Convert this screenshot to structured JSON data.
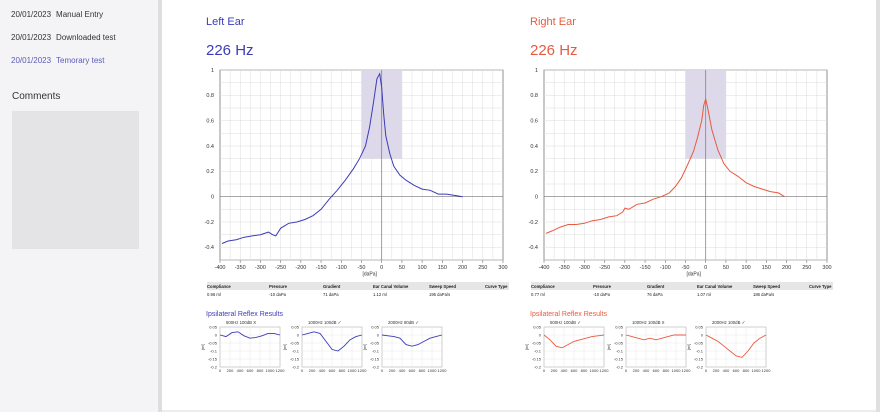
{
  "sidebar": {
    "entries": [
      {
        "date": "20/01/2023",
        "label": "Manual Entry",
        "active": false
      },
      {
        "date": "20/01/2023",
        "label": "Downloaded test",
        "active": false
      },
      {
        "date": "20/01/2023",
        "label": "Temorary test",
        "active": true
      }
    ],
    "comments_title": "Comments"
  },
  "measurement_headers": [
    "Compliance",
    "Pressure",
    "Gradient",
    "Ear Canal Volume",
    "Sweep Speed",
    "Curve Type"
  ],
  "reflex_title": "Ipsilateral Reflex Results",
  "colors": {
    "left": "#3c3cb8",
    "right": "#e85a40",
    "peak_region": "#ddd8ea"
  },
  "left_ear": {
    "title": "Left Ear",
    "frequency": "226 Hz",
    "measurements": [
      "0.96 ml",
      "-10 daPa",
      "71 daPa",
      "1.12 ml",
      "195 daPa/s",
      ""
    ],
    "reflex": [
      {
        "header": "500Hz   100dB X",
        "values": [
          0,
          -0.01,
          0.015,
          0.02,
          -0.005,
          -0.02,
          -0.015,
          -0.005,
          0.01,
          0.01,
          0
        ]
      },
      {
        "header": "1000Hz   100dB ✓",
        "values": [
          0,
          0.01,
          0.02,
          0.01,
          -0.04,
          -0.09,
          -0.1,
          -0.07,
          -0.03,
          -0.01,
          0
        ]
      },
      {
        "header": "2000Hz   80dB ✓",
        "values": [
          0,
          -0.005,
          -0.01,
          -0.02,
          -0.06,
          -0.07,
          -0.06,
          -0.04,
          -0.02,
          -0.01,
          0
        ]
      }
    ]
  },
  "right_ear": {
    "title": "Right Ear",
    "frequency": "226 Hz",
    "measurements": [
      "0.77 ml",
      "-10 daPa",
      "76 daPa",
      "1.07 ml",
      "186 daPa/s",
      ""
    ],
    "reflex": [
      {
        "header": "500Hz   100dB ✓",
        "values": [
          0,
          -0.03,
          -0.07,
          -0.08,
          -0.06,
          -0.04,
          -0.03,
          -0.02,
          -0.01,
          -0.005,
          0
        ]
      },
      {
        "header": "1000Hz   100dB X",
        "values": [
          0,
          -0.01,
          -0.02,
          -0.03,
          -0.02,
          -0.03,
          -0.02,
          -0.01,
          0,
          0,
          0
        ]
      },
      {
        "header": "2000Hz   100dB ✓",
        "values": [
          0,
          -0.02,
          -0.04,
          -0.07,
          -0.1,
          -0.13,
          -0.14,
          -0.1,
          -0.05,
          -0.02,
          0
        ]
      }
    ]
  },
  "chart_data": [
    {
      "type": "line",
      "title": "Left Ear",
      "xlabel": "[daPa]",
      "xlim": [
        -400,
        300
      ],
      "ylim": [
        -0.5,
        1
      ],
      "x_ticks": [
        -400,
        -350,
        -300,
        -250,
        -200,
        -150,
        -100,
        -50,
        0,
        50,
        100,
        150,
        200,
        250,
        300
      ],
      "y_ticks": [
        -0.4,
        -0.2,
        0,
        0.2,
        0.4,
        0.6,
        0.8,
        1
      ],
      "grid": true,
      "peak_region": {
        "x": [
          -50,
          50
        ],
        "y": [
          0.3,
          1.05
        ]
      },
      "series": [
        {
          "x": [
            -395,
            -380,
            -360,
            -340,
            -320,
            -300,
            -280,
            -270,
            -262,
            -250,
            -230,
            -210,
            -190,
            -170,
            -150,
            -130,
            -110,
            -90,
            -70,
            -55,
            -40,
            -30,
            -20,
            -12,
            -5,
            0,
            5,
            10,
            20,
            30,
            45,
            60,
            80,
            100,
            120,
            140,
            160,
            180,
            200
          ],
          "y": [
            -0.37,
            -0.35,
            -0.34,
            -0.32,
            -0.31,
            -0.3,
            -0.28,
            -0.3,
            -0.31,
            -0.25,
            -0.21,
            -0.2,
            -0.18,
            -0.15,
            -0.1,
            -0.02,
            0.05,
            0.13,
            0.22,
            0.3,
            0.4,
            0.55,
            0.75,
            0.93,
            0.97,
            0.86,
            0.65,
            0.48,
            0.34,
            0.24,
            0.17,
            0.13,
            0.09,
            0.06,
            0.05,
            0.02,
            0.02,
            0.01,
            0.0
          ]
        }
      ]
    },
    {
      "type": "line",
      "title": "Right Ear",
      "xlabel": "[daPa]",
      "xlim": [
        -400,
        300
      ],
      "ylim": [
        -0.5,
        1
      ],
      "x_ticks": [
        -400,
        -350,
        -300,
        -250,
        -200,
        -150,
        -100,
        -50,
        0,
        50,
        100,
        150,
        200,
        250,
        300
      ],
      "y_ticks": [
        -0.4,
        -0.2,
        0,
        0.2,
        0.4,
        0.6,
        0.8,
        1
      ],
      "grid": true,
      "peak_region": {
        "x": [
          -50,
          50
        ],
        "y": [
          0.3,
          1.05
        ]
      },
      "series": [
        {
          "x": [
            -395,
            -380,
            -360,
            -340,
            -320,
            -300,
            -280,
            -260,
            -240,
            -220,
            -205,
            -200,
            -190,
            -170,
            -150,
            -130,
            -110,
            -90,
            -75,
            -60,
            -45,
            -30,
            -20,
            -10,
            -5,
            0,
            5,
            15,
            30,
            45,
            60,
            80,
            100,
            120,
            140,
            160,
            180,
            195
          ],
          "y": [
            -0.29,
            -0.27,
            -0.24,
            -0.22,
            -0.22,
            -0.21,
            -0.19,
            -0.18,
            -0.16,
            -0.15,
            -0.12,
            -0.09,
            -0.1,
            -0.06,
            -0.05,
            -0.02,
            0.0,
            0.03,
            0.08,
            0.15,
            0.25,
            0.36,
            0.47,
            0.6,
            0.72,
            0.77,
            0.7,
            0.53,
            0.37,
            0.26,
            0.2,
            0.16,
            0.11,
            0.08,
            0.06,
            0.04,
            0.03,
            0.0
          ]
        }
      ]
    },
    {
      "type": "line",
      "title": "Ipsilateral Reflex Results",
      "xlim": [
        0,
        1200
      ],
      "ylim": [
        -0.2,
        0.05
      ],
      "x_ticks": [
        0,
        200,
        400,
        600,
        800,
        1000,
        1200
      ],
      "y_ticks": [
        0.05,
        0,
        -0.05,
        -0.1,
        -0.15,
        -0.2
      ],
      "ylabel": "[ml]",
      "grid": true,
      "x": [
        0,
        120,
        240,
        360,
        480,
        600,
        720,
        840,
        960,
        1080,
        1200
      ],
      "series": [
        {
          "name": "Left 500Hz",
          "values": [
            0,
            -0.01,
            0.015,
            0.02,
            -0.005,
            -0.02,
            -0.015,
            -0.005,
            0.01,
            0.01,
            0
          ]
        },
        {
          "name": "Left 1000Hz",
          "values": [
            0,
            0.01,
            0.02,
            0.01,
            -0.04,
            -0.09,
            -0.1,
            -0.07,
            -0.03,
            -0.01,
            0
          ]
        },
        {
          "name": "Left 2000Hz",
          "values": [
            0,
            -0.005,
            -0.01,
            -0.02,
            -0.06,
            -0.07,
            -0.06,
            -0.04,
            -0.02,
            -0.01,
            0
          ]
        },
        {
          "name": "Right 500Hz",
          "values": [
            0,
            -0.03,
            -0.07,
            -0.08,
            -0.06,
            -0.04,
            -0.03,
            -0.02,
            -0.01,
            -0.005,
            0
          ]
        },
        {
          "name": "Right 1000Hz",
          "values": [
            0,
            -0.01,
            -0.02,
            -0.03,
            -0.02,
            -0.03,
            -0.02,
            -0.01,
            0,
            0,
            0
          ]
        },
        {
          "name": "Right 2000Hz",
          "values": [
            0,
            -0.02,
            -0.04,
            -0.07,
            -0.1,
            -0.13,
            -0.14,
            -0.1,
            -0.05,
            -0.02,
            0
          ]
        }
      ]
    }
  ]
}
